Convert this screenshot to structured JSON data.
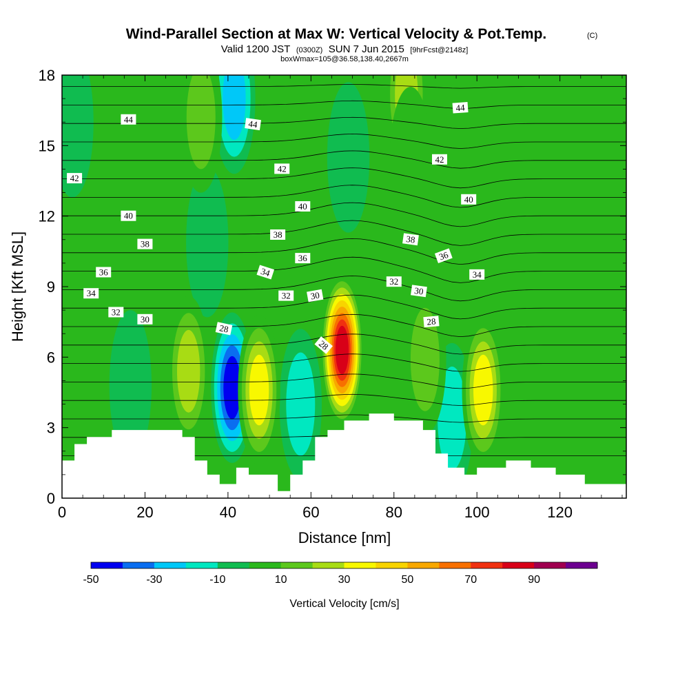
{
  "chart_data": {
    "type": "heatmap",
    "title": "Wind-Parallel Section at Max W: Vertical Velocity & Pot.Temp.",
    "title_mark": "(C)",
    "subtitle": {
      "valid": "Valid 1200 JST",
      "utc": "(0300Z)",
      "date": "SUN 7 Jun 2015",
      "fcst": "[9hrFcst@2148z]",
      "box": "boxWmax=105@36.58,138.40,2667m"
    },
    "xlabel": "Distance [nm]",
    "ylabel": "Height [Kft MSL]",
    "xlim": [
      0,
      136
    ],
    "ylim": [
      0,
      18
    ],
    "x_ticks": [
      "0",
      "20",
      "40",
      "60",
      "80",
      "100",
      "120"
    ],
    "y_ticks": [
      "0",
      "3",
      "6",
      "9",
      "12",
      "15",
      "18"
    ],
    "x_tick_values": [
      0,
      20,
      40,
      60,
      80,
      100,
      120
    ],
    "y_tick_values": [
      0,
      3,
      6,
      9,
      12,
      15,
      18
    ],
    "colorbar": {
      "label": "Vertical Velocity [cm/s]",
      "labels": [
        "-50",
        "-30",
        "-10",
        "10",
        "30",
        "50",
        "70",
        "90"
      ],
      "bounds": [
        -50,
        -40,
        -30,
        -20,
        -10,
        0,
        10,
        20,
        30,
        40,
        50,
        60,
        70,
        80,
        90,
        100
      ],
      "colors": [
        "#0000f0",
        "#0a6ef0",
        "#00c8f8",
        "#00e8c0",
        "#10bc50",
        "#2ab81c",
        "#5cc81c",
        "#a8dc14",
        "#f8f800",
        "#f8d400",
        "#f8a800",
        "#f87000",
        "#f03010",
        "#d80018",
        "#a00050",
        "#6c0090"
      ]
    },
    "w_updrafts": [
      {
        "x": 67.5,
        "z": 6.3,
        "w": 90
      },
      {
        "x": 30.5,
        "z": 5.4,
        "w": 35
      },
      {
        "x": 47.5,
        "z": 4.6,
        "w": 40
      },
      {
        "x": 101.5,
        "z": 4.6,
        "w": 45
      },
      {
        "x": 87.5,
        "z": 5.9,
        "w": 25
      },
      {
        "x": 33.5,
        "z": 16.2,
        "w": 28
      },
      {
        "x": 83.0,
        "z": 17.2,
        "w": 30
      },
      {
        "x": 84.0,
        "z": 14.3,
        "w": 18
      }
    ],
    "w_downdrafts": [
      {
        "x": 41.0,
        "z": 4.7,
        "w": -50
      },
      {
        "x": 57.5,
        "z": 4.0,
        "w": -22
      },
      {
        "x": 94.0,
        "z": 3.4,
        "w": -25
      },
      {
        "x": 16.5,
        "z": 4.8,
        "w": -18
      },
      {
        "x": 41.5,
        "z": 17.0,
        "w": -30
      },
      {
        "x": 69.0,
        "z": 14.5,
        "w": -15
      },
      {
        "x": 35.0,
        "z": 10.9,
        "w": -15
      },
      {
        "x": 2.5,
        "z": 16.0,
        "w": -12
      }
    ],
    "theta_contours": [
      24,
      25,
      26,
      27,
      28,
      29,
      30,
      31,
      32,
      33,
      34,
      35,
      36,
      37,
      38,
      39,
      40,
      41,
      42,
      43,
      44,
      45
    ],
    "theta_labels": [
      {
        "text": "44",
        "x": 16,
        "z": 16.1,
        "rot": 0
      },
      {
        "text": "44",
        "x": 46,
        "z": 15.9,
        "rot": 8
      },
      {
        "text": "44",
        "x": 96,
        "z": 16.6,
        "rot": -4
      },
      {
        "text": "42",
        "x": 3,
        "z": 13.6,
        "rot": 0
      },
      {
        "text": "42",
        "x": 53,
        "z": 14.0,
        "rot": 0
      },
      {
        "text": "42",
        "x": 91,
        "z": 14.4,
        "rot": 0
      },
      {
        "text": "40",
        "x": 16,
        "z": 12.0,
        "rot": 0
      },
      {
        "text": "40",
        "x": 58,
        "z": 12.4,
        "rot": 0
      },
      {
        "text": "40",
        "x": 98,
        "z": 12.7,
        "rot": 0
      },
      {
        "text": "38",
        "x": 20,
        "z": 10.8,
        "rot": 0
      },
      {
        "text": "38",
        "x": 52,
        "z": 11.2,
        "rot": 0
      },
      {
        "text": "38",
        "x": 84,
        "z": 11.0,
        "rot": 8
      },
      {
        "text": "36",
        "x": 10,
        "z": 9.6,
        "rot": 0
      },
      {
        "text": "36",
        "x": 58,
        "z": 10.2,
        "rot": 0
      },
      {
        "text": "36",
        "x": 92,
        "z": 10.3,
        "rot": -20
      },
      {
        "text": "34",
        "x": 7,
        "z": 8.7,
        "rot": 0
      },
      {
        "text": "34",
        "x": 49,
        "z": 9.6,
        "rot": 18
      },
      {
        "text": "34",
        "x": 100,
        "z": 9.5,
        "rot": 0
      },
      {
        "text": "32",
        "x": 13,
        "z": 7.9,
        "rot": 0
      },
      {
        "text": "32",
        "x": 54,
        "z": 8.6,
        "rot": 0
      },
      {
        "text": "32",
        "x": 80,
        "z": 9.2,
        "rot": 0
      },
      {
        "text": "30",
        "x": 20,
        "z": 7.6,
        "rot": 0
      },
      {
        "text": "30",
        "x": 61,
        "z": 8.6,
        "rot": -10
      },
      {
        "text": "30",
        "x": 86,
        "z": 8.8,
        "rot": 8
      },
      {
        "text": "28",
        "x": 39,
        "z": 7.2,
        "rot": 12
      },
      {
        "text": "28",
        "x": 63,
        "z": 6.5,
        "rot": 40
      },
      {
        "text": "28",
        "x": 89,
        "z": 7.5,
        "rot": -5
      }
    ],
    "terrain": [
      [
        0,
        1.6
      ],
      [
        3,
        1.6
      ],
      [
        3,
        2.3
      ],
      [
        6,
        2.3
      ],
      [
        6,
        2.6
      ],
      [
        9,
        2.6
      ],
      [
        12,
        2.6
      ],
      [
        12,
        2.9
      ],
      [
        18,
        2.9
      ],
      [
        29,
        2.9
      ],
      [
        29,
        2.6
      ],
      [
        32,
        2.6
      ],
      [
        32,
        1.6
      ],
      [
        35,
        1.6
      ],
      [
        35,
        1.0
      ],
      [
        38,
        1.0
      ],
      [
        38,
        0.6
      ],
      [
        42,
        0.6
      ],
      [
        42,
        1.3
      ],
      [
        45,
        1.3
      ],
      [
        45,
        1.0
      ],
      [
        52,
        1.0
      ],
      [
        52,
        0.3
      ],
      [
        55,
        0.3
      ],
      [
        55,
        1.0
      ],
      [
        58,
        1.0
      ],
      [
        58,
        1.6
      ],
      [
        61,
        1.6
      ],
      [
        61,
        2.6
      ],
      [
        64,
        2.6
      ],
      [
        64,
        2.9
      ],
      [
        68,
        2.9
      ],
      [
        68,
        3.3
      ],
      [
        74,
        3.3
      ],
      [
        74,
        3.6
      ],
      [
        80,
        3.6
      ],
      [
        80,
        3.3
      ],
      [
        87,
        3.3
      ],
      [
        87,
        2.9
      ],
      [
        90,
        2.9
      ],
      [
        90,
        1.9
      ],
      [
        93,
        1.9
      ],
      [
        93,
        1.3
      ],
      [
        97,
        1.3
      ],
      [
        97,
        1.0
      ],
      [
        100,
        1.0
      ],
      [
        100,
        1.3
      ],
      [
        107,
        1.3
      ],
      [
        107,
        1.6
      ],
      [
        113,
        1.6
      ],
      [
        113,
        1.3
      ],
      [
        119,
        1.3
      ],
      [
        119,
        1.0
      ],
      [
        126,
        1.0
      ],
      [
        126,
        0.6
      ],
      [
        136,
        0.6
      ]
    ]
  }
}
